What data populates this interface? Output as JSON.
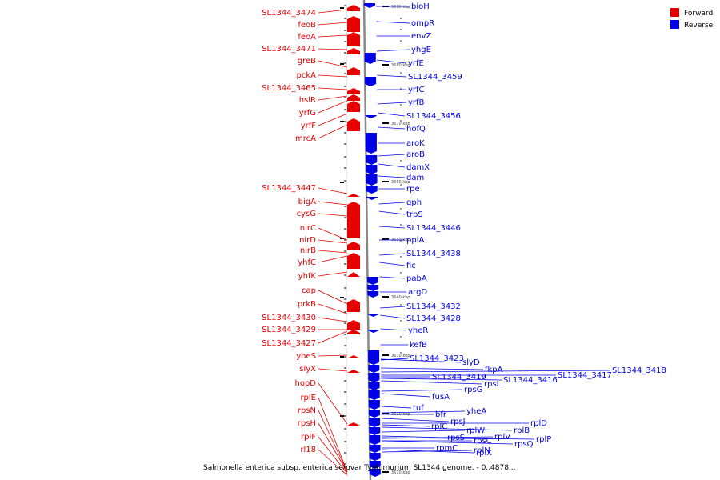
{
  "caption": "Salmonella enterica subsp. enterica serovar Typhimurium SL1344 genome. - 0..4878...",
  "legend": [
    {
      "label": "Forward",
      "color": "#e60000"
    },
    {
      "label": "Reverse",
      "color": "#0000e6"
    }
  ],
  "colors": {
    "forward": "#e60000",
    "reverse": "#0000e6",
    "backbone": "#888888"
  },
  "ticks": [
    "3690 kbp",
    "3680 kbp",
    "3670 kbp",
    "3660 kbp",
    "3650 kbp",
    "3640 kbp",
    "3630 kbp",
    "3620 kbp",
    "3610 kbp"
  ],
  "forward_genes": [
    "SL1344_3474",
    "feoB",
    "feoA",
    "SL1344_3471",
    "greB",
    "pckA",
    "SL1344_3465",
    "hslR",
    "yrfG",
    "yrfF",
    "mrcA",
    "SL1344_3447",
    "bigA",
    "cysG",
    "nirC",
    "nirD",
    "nirB",
    "yhfC",
    "yhfK",
    "cap",
    "prkB",
    "SL1344_3430",
    "SL1344_3429",
    "SL1344_3427",
    "yheS",
    "slyX",
    "hopD",
    "rplE",
    "rpsN",
    "rpsH",
    "rplF",
    "rl18"
  ],
  "reverse_genes": [
    "bioH",
    "ompR",
    "envZ",
    "yhgE",
    "yrfE",
    "SL1344_3459",
    "yrfC",
    "yrfB",
    "SL1344_3456",
    "hofQ",
    "aroK",
    "aroB",
    "damX",
    "dam",
    "rpe",
    "gph",
    "trpS",
    "SL1344_3446",
    "ppiA",
    "SL1344_3438",
    "fic",
    "pabA",
    "argD",
    "SL1344_3432",
    "SL1344_3428",
    "yheR",
    "kefB",
    "SL1344_3423",
    "slyD",
    "fkpA",
    "SL1344_3419",
    "rpsG",
    "rpsL",
    "SL1344_3416",
    "SL1344_3417",
    "SL1344_3418",
    "fusA",
    "tuf",
    "bfr",
    "yheA",
    "rpsJ",
    "rplC",
    "rplD",
    "rplW",
    "rplB",
    "rpsS",
    "rpsC",
    "rplV",
    "rpsQ",
    "rplP",
    "rpmC",
    "rplN",
    "rplX"
  ]
}
